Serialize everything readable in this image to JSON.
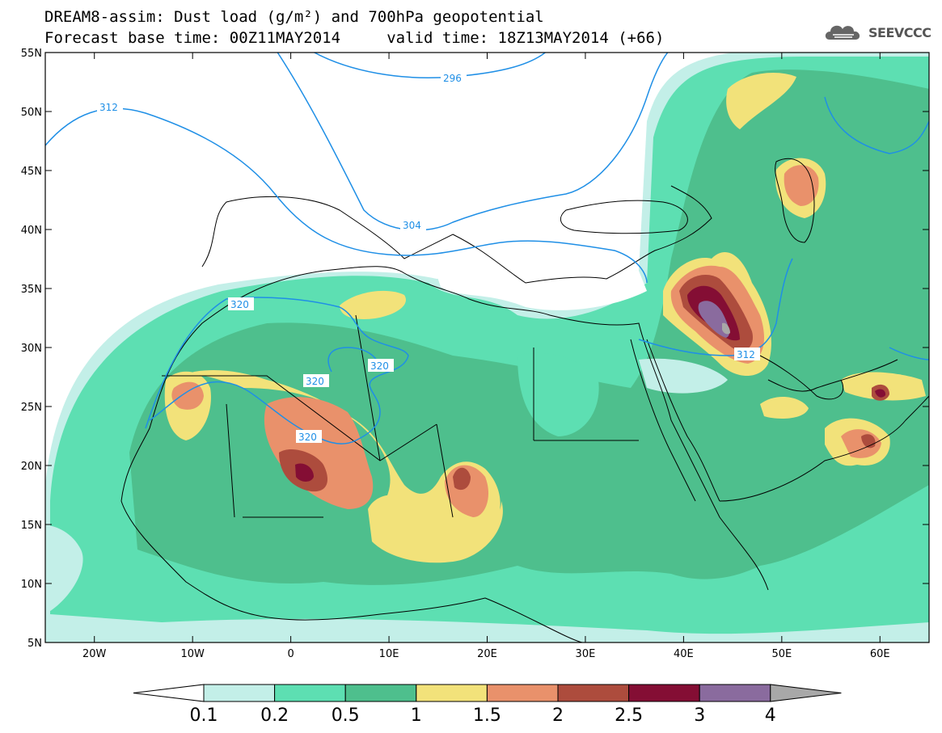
{
  "header": {
    "line1": "DREAM8-assim: Dust load (g/m²) and 700hPa geopotential",
    "line2": "Forecast base time: 00Z11MAY2014     valid time: 18Z13MAY2014 (+66)"
  },
  "logo": {
    "text": "SEEVCCC",
    "icon": "cloud-icon"
  },
  "map": {
    "lon_range": [
      -25,
      65
    ],
    "lat_range": [
      5,
      55
    ],
    "lon_ticks": [
      {
        "lon": -20,
        "label": "20W"
      },
      {
        "lon": -10,
        "label": "10W"
      },
      {
        "lon": 0,
        "label": "0"
      },
      {
        "lon": 10,
        "label": "10E"
      },
      {
        "lon": 20,
        "label": "20E"
      },
      {
        "lon": 30,
        "label": "30E"
      },
      {
        "lon": 40,
        "label": "40E"
      },
      {
        "lon": 50,
        "label": "50E"
      },
      {
        "lon": 60,
        "label": "60E"
      }
    ],
    "lat_ticks": [
      {
        "lat": 55,
        "label": "55N"
      },
      {
        "lat": 50,
        "label": "50N"
      },
      {
        "lat": 45,
        "label": "45N"
      },
      {
        "lat": 40,
        "label": "40N"
      },
      {
        "lat": 35,
        "label": "35N"
      },
      {
        "lat": 30,
        "label": "30N"
      },
      {
        "lat": 25,
        "label": "25N"
      },
      {
        "lat": 20,
        "label": "20N"
      },
      {
        "lat": 15,
        "label": "15N"
      },
      {
        "lat": 10,
        "label": "10N"
      },
      {
        "lat": 5,
        "label": "5N"
      }
    ],
    "contour_labels": [
      "296",
      "304",
      "312",
      "320"
    ],
    "colors": {
      "0.1": "#c3efe8",
      "0.2": "#5ddfb2",
      "0.5": "#4ebf8d",
      "1": "#f2e27a",
      "1.5": "#e9916b",
      "2": "#ad4c3d",
      "2.5": "#840e34",
      "3": "#8a6b9e",
      "4": "#a8a8a8",
      "contour": "#1f8fe6"
    }
  },
  "colorbar": {
    "boundaries": [
      "0.1",
      "0.2",
      "0.5",
      "1",
      "1.5",
      "2",
      "2.5",
      "3",
      "4"
    ],
    "colors": [
      "#c3efe8",
      "#5ddfb2",
      "#4ebf8d",
      "#f2e27a",
      "#e9916b",
      "#ad4c3d",
      "#840e34",
      "#8a6b9e",
      "#a8a8a8"
    ]
  }
}
